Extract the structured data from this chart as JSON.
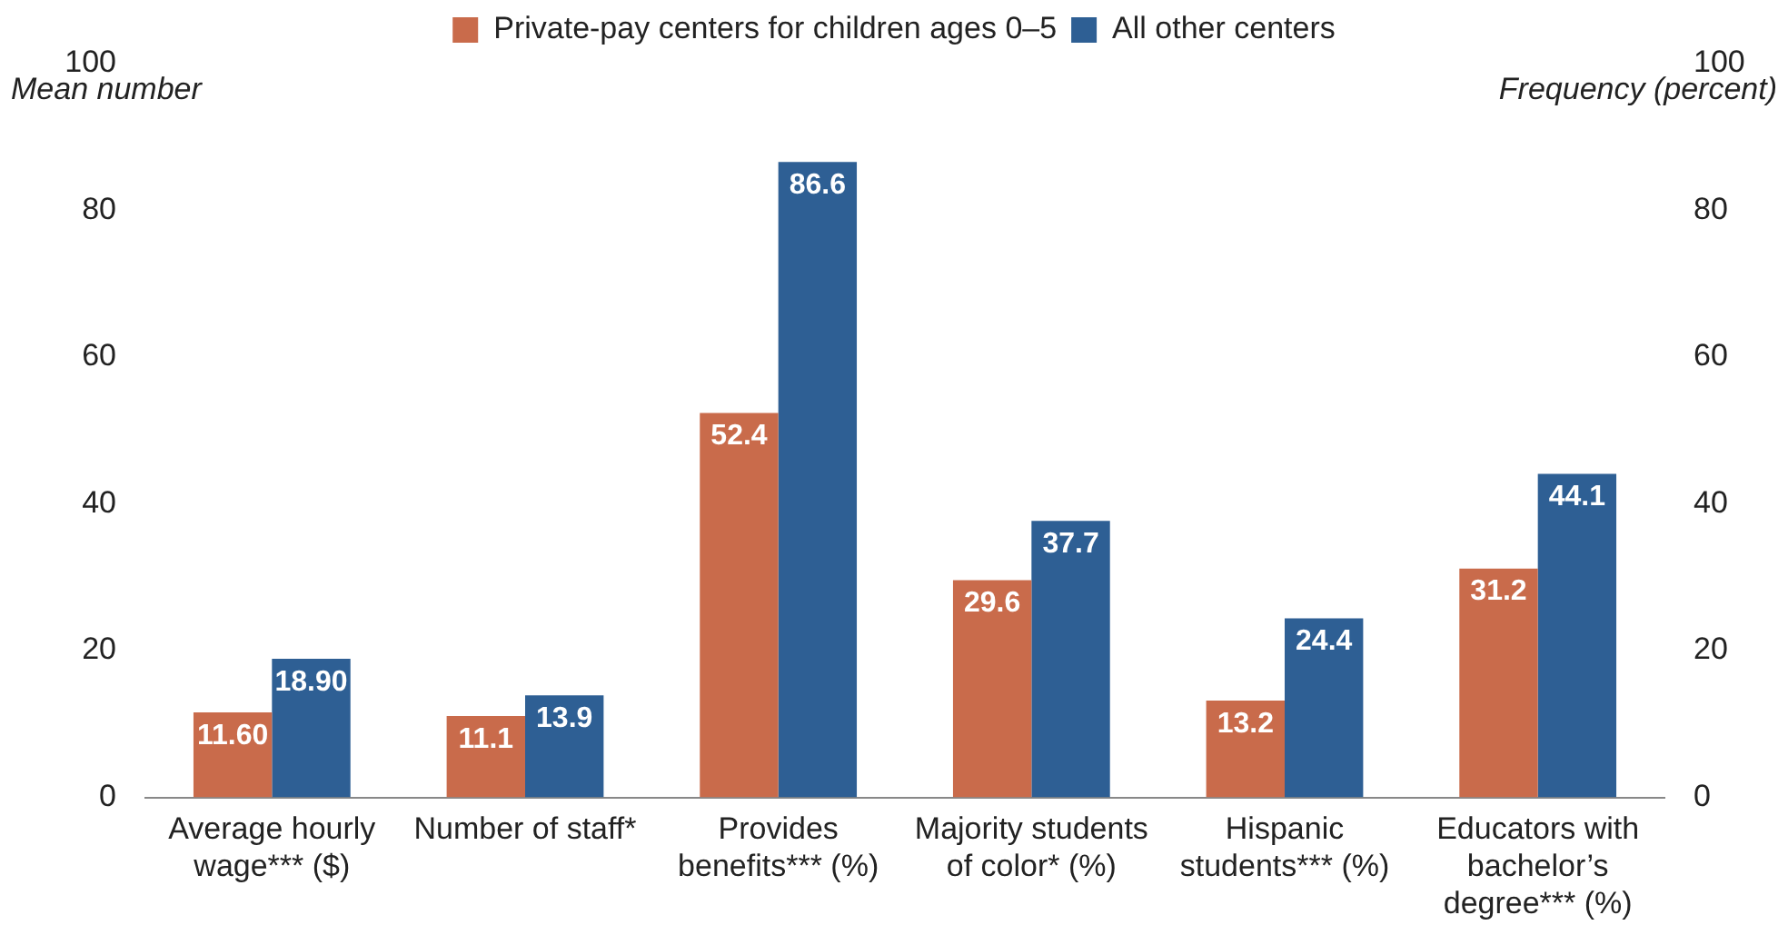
{
  "chart_data": {
    "type": "bar",
    "ylabel": "Mean number",
    "y2label": "Frequency (percent)",
    "categories": [
      "Average hourly wage*** ($)",
      "Number of staff*",
      "Provides benefits*** (%)",
      "Majority students of color* (%)",
      "Hispanic students*** (%)",
      "Educators with bachelor’s degree*** (%)"
    ],
    "series": [
      {
        "name": "Private-pay centers for children ages 0–5",
        "color": "#c96b4b",
        "values": [
          11.6,
          11.1,
          52.4,
          29.6,
          13.2,
          31.2
        ],
        "value_labels": [
          "11.60",
          "11.1",
          "52.4",
          "29.6",
          "13.2",
          "31.2"
        ]
      },
      {
        "name": "All other centers",
        "color": "#2e5f94",
        "values": [
          18.9,
          13.9,
          86.6,
          37.7,
          24.4,
          44.1
        ],
        "value_labels": [
          "18.90",
          "13.9",
          "86.6",
          "37.7",
          "24.4",
          "44.1"
        ]
      }
    ],
    "ylim": [
      0,
      100
    ],
    "yticks": [
      0,
      20,
      40,
      60,
      80,
      100
    ],
    "y2lim": [
      0,
      100
    ],
    "y2ticks": [
      0,
      20,
      40,
      60,
      80,
      100
    ],
    "grid": false,
    "legend": "top"
  }
}
